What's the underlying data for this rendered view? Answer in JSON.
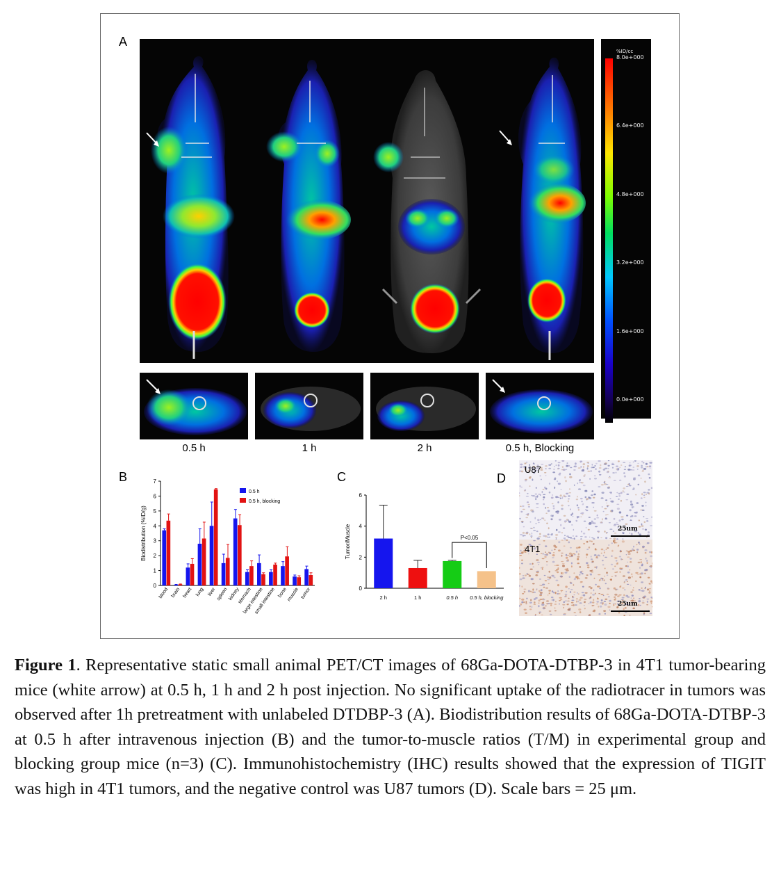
{
  "panels": {
    "a": "A",
    "b": "B",
    "c": "C",
    "d": "D"
  },
  "colorbar": {
    "unit": "%ID/cc",
    "ticks": [
      "8.0e+000",
      "6.4e+000",
      "4.8e+000",
      "3.2e+000",
      "1.6e+000",
      "0.0e+000"
    ]
  },
  "time_labels": [
    "0.5 h",
    "1 h",
    "2 h",
    "0.5 h, Blocking"
  ],
  "chart_data": [
    {
      "type": "bar",
      "title": "",
      "xlabel": "",
      "ylabel": "Biodistribution (%ID/g)",
      "ylim": [
        0,
        7
      ],
      "yticks": [
        "0",
        "1",
        "2",
        "3",
        "4",
        "5",
        "6",
        "7"
      ],
      "categories": [
        "blood",
        "brain",
        "heart",
        "lung",
        "liver",
        "spleen",
        "kidney",
        "stomach",
        "large intestine",
        "small intestine",
        "bone",
        "muscle",
        "tumor"
      ],
      "series": [
        {
          "name": "0.5 h",
          "color": "#1515ee",
          "values": [
            3.7,
            0.05,
            1.2,
            2.8,
            4.0,
            1.5,
            4.5,
            0.9,
            1.5,
            0.9,
            1.3,
            0.6,
            1.1
          ],
          "errors": [
            0.1,
            0.02,
            0.25,
            1.0,
            1.6,
            0.6,
            0.6,
            0.15,
            0.55,
            0.15,
            0.3,
            0.1,
            0.2
          ]
        },
        {
          "name": "0.5 h, blocking",
          "color": "#e21212",
          "values": [
            4.35,
            0.08,
            1.45,
            3.15,
            6.45,
            1.85,
            4.05,
            1.3,
            0.75,
            1.4,
            1.95,
            0.55,
            0.7
          ],
          "errors": [
            0.45,
            0.02,
            0.35,
            1.1,
            0.05,
            0.9,
            0.7,
            0.35,
            0.1,
            0.1,
            0.65,
            0.1,
            0.15
          ]
        }
      ]
    },
    {
      "type": "bar",
      "title": "",
      "xlabel": "",
      "ylabel": "Tumor/Muscle",
      "ylim": [
        0,
        6
      ],
      "yticks": [
        "0",
        "2",
        "4",
        "6"
      ],
      "categories": [
        "2 h",
        "1 h",
        "0.5 h",
        "0.5 h, blocking"
      ],
      "values": [
        3.2,
        1.3,
        1.75,
        1.1
      ],
      "errors": [
        2.15,
        0.5,
        0.05,
        0
      ],
      "colors": [
        "#1515ee",
        "#ee1010",
        "#15cc15",
        "#f5c28a"
      ],
      "annotation": "P<0.05"
    }
  ],
  "ihc": [
    {
      "label": "U87",
      "scale": "25um"
    },
    {
      "label": "4T1",
      "scale": "25um"
    }
  ],
  "caption": {
    "figure_label": "Figure 1",
    "text": ". Representative static small animal PET/CT images of 68Ga-DOTA-DTBP-3 in 4T1 tumor-bearing mice (white arrow) at 0.5 h, 1 h and 2 h post injection. No significant uptake of the radiotracer in tumors was observed after 1h pretreatment with unlabeled DTDBP-3 (A). Biodistribution results of 68Ga-DOTA-DTBP-3 at 0.5 h after intravenous injection (B) and the tumor-to-muscle ratios (T/M) in experimental group and blocking group mice (n=3) (C). Immunohistochemistry (IHC) results showed that the expression of TIGIT was high in 4T1 tumors, and the negative control was U87 tumors (D). Scale bars = 25 μm."
  }
}
